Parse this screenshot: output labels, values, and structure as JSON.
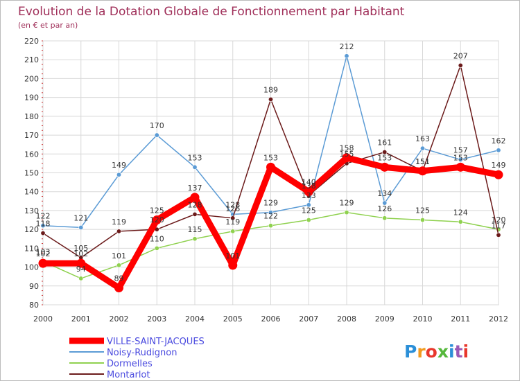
{
  "chart_data": {
    "type": "line",
    "title": "Evolution de la Dotation Globale de Fonctionnement par Habitant",
    "subtitle": "(en € et par an)",
    "xlabel": "",
    "ylabel": "",
    "x": [
      "2000",
      "2001",
      "2002",
      "2003",
      "2004",
      "2005",
      "2006",
      "2007",
      "2008",
      "2009",
      "2010",
      "2011",
      "2012"
    ],
    "ylim": [
      80,
      220
    ],
    "yticks": [
      80,
      90,
      100,
      110,
      120,
      130,
      140,
      150,
      160,
      170,
      180,
      190,
      200,
      210,
      220
    ],
    "grid": true,
    "legend_position": "bottom-left",
    "series": [
      {
        "name": "VILLE-SAINT-JACQUES",
        "color": "#ff0000",
        "values": [
          102,
          102,
          89,
          125,
          137,
          101,
          153,
          140,
          158,
          153,
          151,
          153,
          149
        ]
      },
      {
        "name": "Noisy-Rudignon",
        "color": "#5b9bd5",
        "values": [
          122,
          121,
          149,
          170,
          153,
          128,
          129,
          133,
          212,
          134,
          163,
          157,
          162
        ]
      },
      {
        "name": "Dormelles",
        "color": "#8fd14f",
        "values": [
          103,
          94,
          101,
          110,
          115,
          119,
          122,
          125,
          129,
          126,
          125,
          124,
          120
        ]
      },
      {
        "name": "Montarlot",
        "color": "#6b1a1a",
        "values": [
          118,
          105,
          119,
          120,
          128,
          126,
          189,
          138,
          155,
          161,
          151,
          207,
          117
        ]
      }
    ]
  },
  "brand": {
    "logo_text": "Proxiti"
  }
}
